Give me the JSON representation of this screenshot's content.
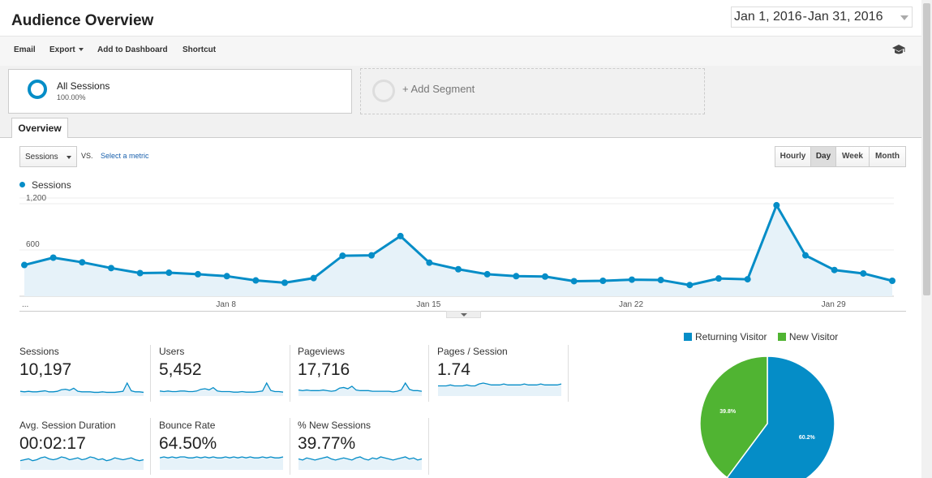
{
  "header": {
    "title": "Audience Overview",
    "date_start": "Jan 1, 2016",
    "date_sep": "-",
    "date_end": "Jan 31, 2016"
  },
  "toolbar": {
    "email": "Email",
    "export": "Export",
    "add_to_dashboard": "Add to Dashboard",
    "shortcut": "Shortcut",
    "help_icon": "graduation-cap-icon"
  },
  "segments": {
    "active_name": "All Sessions",
    "active_pct": "100.00%",
    "add_label": "+ Add Segment"
  },
  "tabs": {
    "overview": "Overview"
  },
  "chart_controls": {
    "metric": "Sessions",
    "vs": "VS.",
    "select_metric": "Select a metric",
    "granularity": [
      "Hourly",
      "Day",
      "Week",
      "Month"
    ],
    "active_granularity": "Day"
  },
  "colors": {
    "accent": "#058dc7",
    "new_visitor": "#50b432",
    "link": "#1a61ad"
  },
  "chart_data": {
    "type": "area",
    "legend": "Sessions",
    "x_tick_labels": [
      "...",
      "Jan 8",
      "Jan 15",
      "Jan 22",
      "Jan 29"
    ],
    "x": [
      1,
      2,
      3,
      4,
      5,
      6,
      7,
      8,
      9,
      10,
      11,
      12,
      13,
      14,
      15,
      16,
      17,
      18,
      19,
      20,
      21,
      22,
      23,
      24,
      25,
      26,
      27,
      28,
      29,
      30,
      31
    ],
    "values": [
      405,
      500,
      440,
      365,
      300,
      305,
      285,
      260,
      205,
      175,
      235,
      525,
      530,
      780,
      435,
      350,
      285,
      260,
      255,
      195,
      200,
      215,
      210,
      145,
      230,
      220,
      1180,
      530,
      340,
      295,
      200
    ],
    "y_ticks": [
      600,
      1200
    ],
    "y_tick_labels": [
      "600",
      "1,200"
    ],
    "ylim": [
      0,
      1200
    ]
  },
  "metrics": [
    {
      "label": "Sessions",
      "value": "10,197",
      "spark": [
        6,
        5,
        6,
        5,
        5,
        6,
        7,
        5,
        5,
        6,
        9,
        10,
        8,
        12,
        6,
        5,
        5,
        5,
        4,
        4,
        5,
        4,
        4,
        4,
        5,
        6,
        22,
        7,
        5,
        5,
        4
      ]
    },
    {
      "label": "Users",
      "value": "5,452",
      "spark": [
        6,
        5,
        6,
        5,
        5,
        6,
        6,
        5,
        5,
        6,
        9,
        10,
        8,
        12,
        6,
        5,
        5,
        5,
        4,
        4,
        5,
        4,
        4,
        4,
        5,
        6,
        20,
        7,
        5,
        5,
        4
      ]
    },
    {
      "label": "Pageviews",
      "value": "17,716",
      "spark": [
        7,
        6,
        7,
        6,
        6,
        6,
        7,
        6,
        5,
        6,
        10,
        11,
        9,
        13,
        7,
        6,
        6,
        6,
        5,
        5,
        5,
        5,
        5,
        4,
        5,
        7,
        18,
        8,
        6,
        6,
        5
      ]
    },
    {
      "label": "Pages / Session",
      "value": "1.74",
      "spark": [
        9,
        9,
        9,
        10,
        9,
        9,
        9,
        10,
        9,
        9,
        11,
        12,
        11,
        10,
        10,
        10,
        11,
        10,
        10,
        10,
        10,
        11,
        10,
        10,
        10,
        11,
        10,
        10,
        10,
        10,
        11
      ]
    },
    {
      "label": "Avg. Session Duration",
      "value": "00:02:17",
      "spark": [
        8,
        9,
        10,
        8,
        9,
        11,
        12,
        10,
        9,
        10,
        12,
        11,
        9,
        10,
        11,
        9,
        10,
        12,
        11,
        9,
        10,
        8,
        9,
        11,
        10,
        9,
        10,
        11,
        9,
        8,
        9
      ]
    },
    {
      "label": "Bounce Rate",
      "value": "64.50%",
      "spark": [
        11,
        12,
        11,
        12,
        11,
        12,
        12,
        11,
        11,
        12,
        11,
        12,
        11,
        12,
        11,
        11,
        12,
        11,
        12,
        11,
        12,
        11,
        12,
        11,
        11,
        12,
        11,
        12,
        11,
        11,
        12
      ]
    },
    {
      "label": "% New Sessions",
      "value": "39.77%",
      "spark": [
        9,
        8,
        10,
        9,
        8,
        9,
        10,
        11,
        9,
        8,
        9,
        10,
        9,
        8,
        10,
        11,
        9,
        8,
        10,
        9,
        11,
        10,
        9,
        8,
        9,
        10,
        11,
        9,
        10,
        8,
        9
      ]
    }
  ],
  "pie": {
    "type": "pie",
    "legend": [
      {
        "label": "Returning Visitor",
        "value": 60.2,
        "text": "60.2%",
        "color": "#058dc7"
      },
      {
        "label": "New Visitor",
        "value": 39.8,
        "text": "39.8%",
        "color": "#50b432"
      }
    ]
  }
}
